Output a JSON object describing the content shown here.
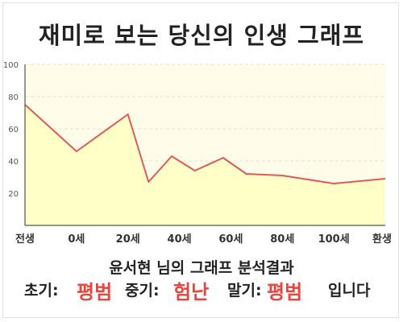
{
  "title": "재미로 보는 당신의 인생 그래프",
  "summary": "윤서현 님의 그래프 분석결과",
  "result": {
    "early_label": "초기:",
    "early_value": "평범",
    "mid_label": "중기:",
    "mid_value": "험난",
    "late_label": "말기:",
    "late_value": "평범",
    "ending": "입니다"
  },
  "colors": {
    "line": "#e05a5a",
    "fill": "#ffffc8",
    "plot_bg": "#fffde9",
    "highlight": "#e8453c"
  },
  "chart_data": {
    "type": "area",
    "x_tick_labels": [
      "전생",
      "0세",
      "20세",
      "40세",
      "60세",
      "80세",
      "100세",
      "환생"
    ],
    "x": [
      -20,
      0,
      20,
      28,
      37,
      46,
      57,
      66,
      80,
      100,
      120
    ],
    "y": [
      75,
      46,
      69,
      27,
      43,
      34,
      42,
      32,
      31,
      26,
      29
    ],
    "xlim": [
      -20,
      120
    ],
    "ylim": [
      0,
      100
    ],
    "y_ticks": [
      20,
      40,
      60,
      80,
      100
    ],
    "grid": true,
    "title": "",
    "xlabel": "",
    "ylabel": ""
  }
}
